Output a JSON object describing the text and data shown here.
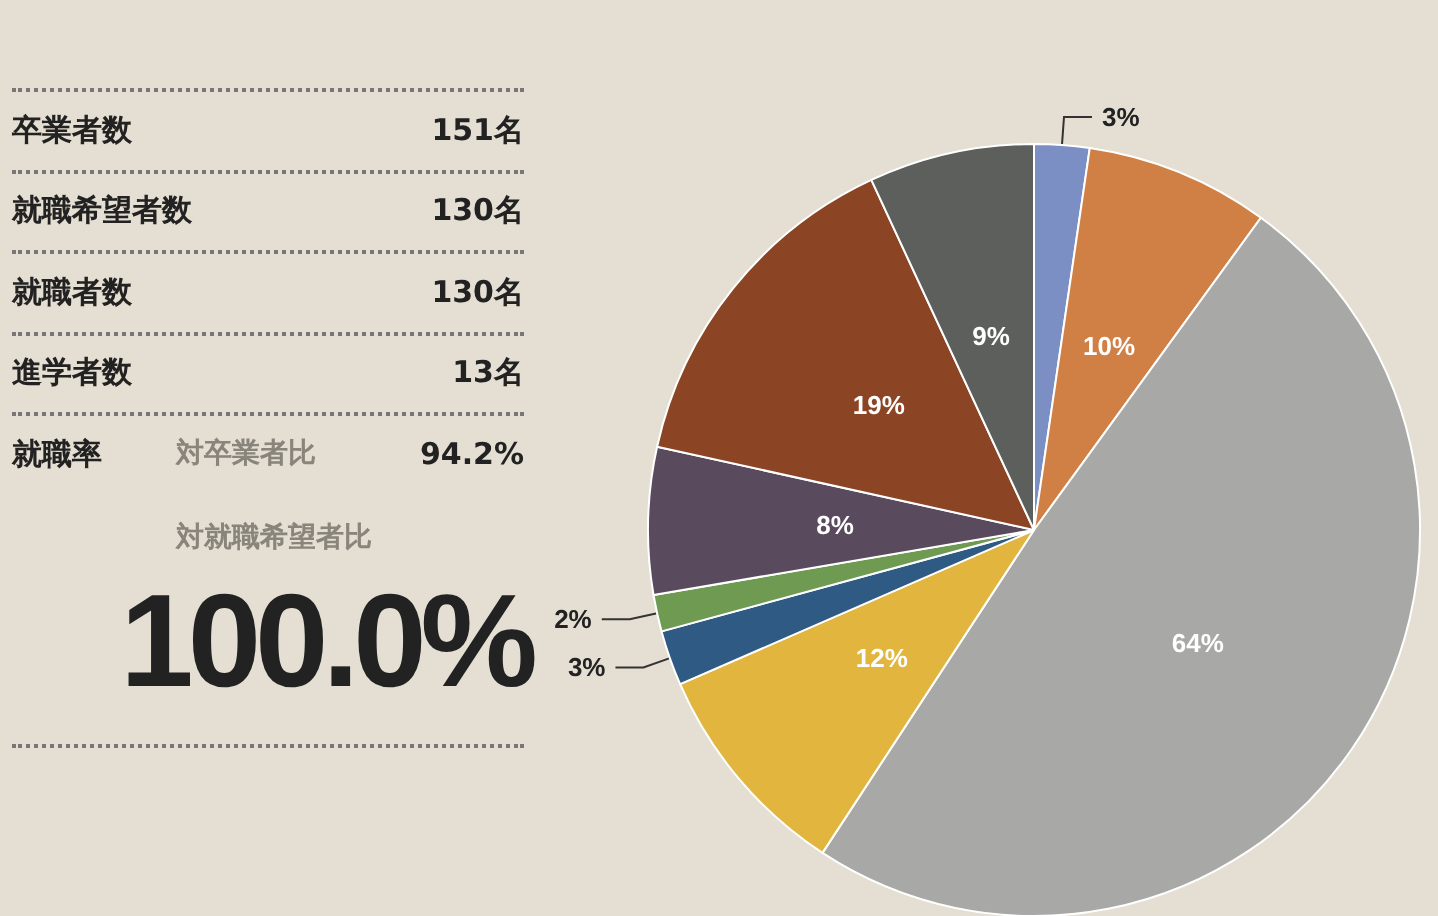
{
  "chart_data": [
    {
      "type": "other",
      "annotations": [
        "卒業者数",
        "151名",
        "就職希望者数",
        "130名",
        "就職者数",
        "130名",
        "進学者数",
        "13名",
        "就職率",
        "対卒業者比",
        "94.2%",
        "対就職希望者比",
        "100.0%"
      ]
    },
    {
      "type": "pie",
      "categories": [
        null,
        null,
        null,
        null,
        null,
        null,
        null,
        null,
        null
      ],
      "values": [
        3,
        10,
        64,
        12,
        3,
        2,
        8,
        19,
        9
      ],
      "value_labels": [
        "3%",
        "10%",
        "64%",
        "12%",
        "3%",
        "2%",
        "8%",
        "19%",
        "9%"
      ],
      "colors": [
        "#7b8fc4",
        "#d07f45",
        "#a8a9a6",
        "#e2b53f",
        "#2f5a84",
        "#6f9a52",
        "#5a4a5e",
        "#8b4524",
        "#5d5f5c"
      ]
    }
  ]
}
